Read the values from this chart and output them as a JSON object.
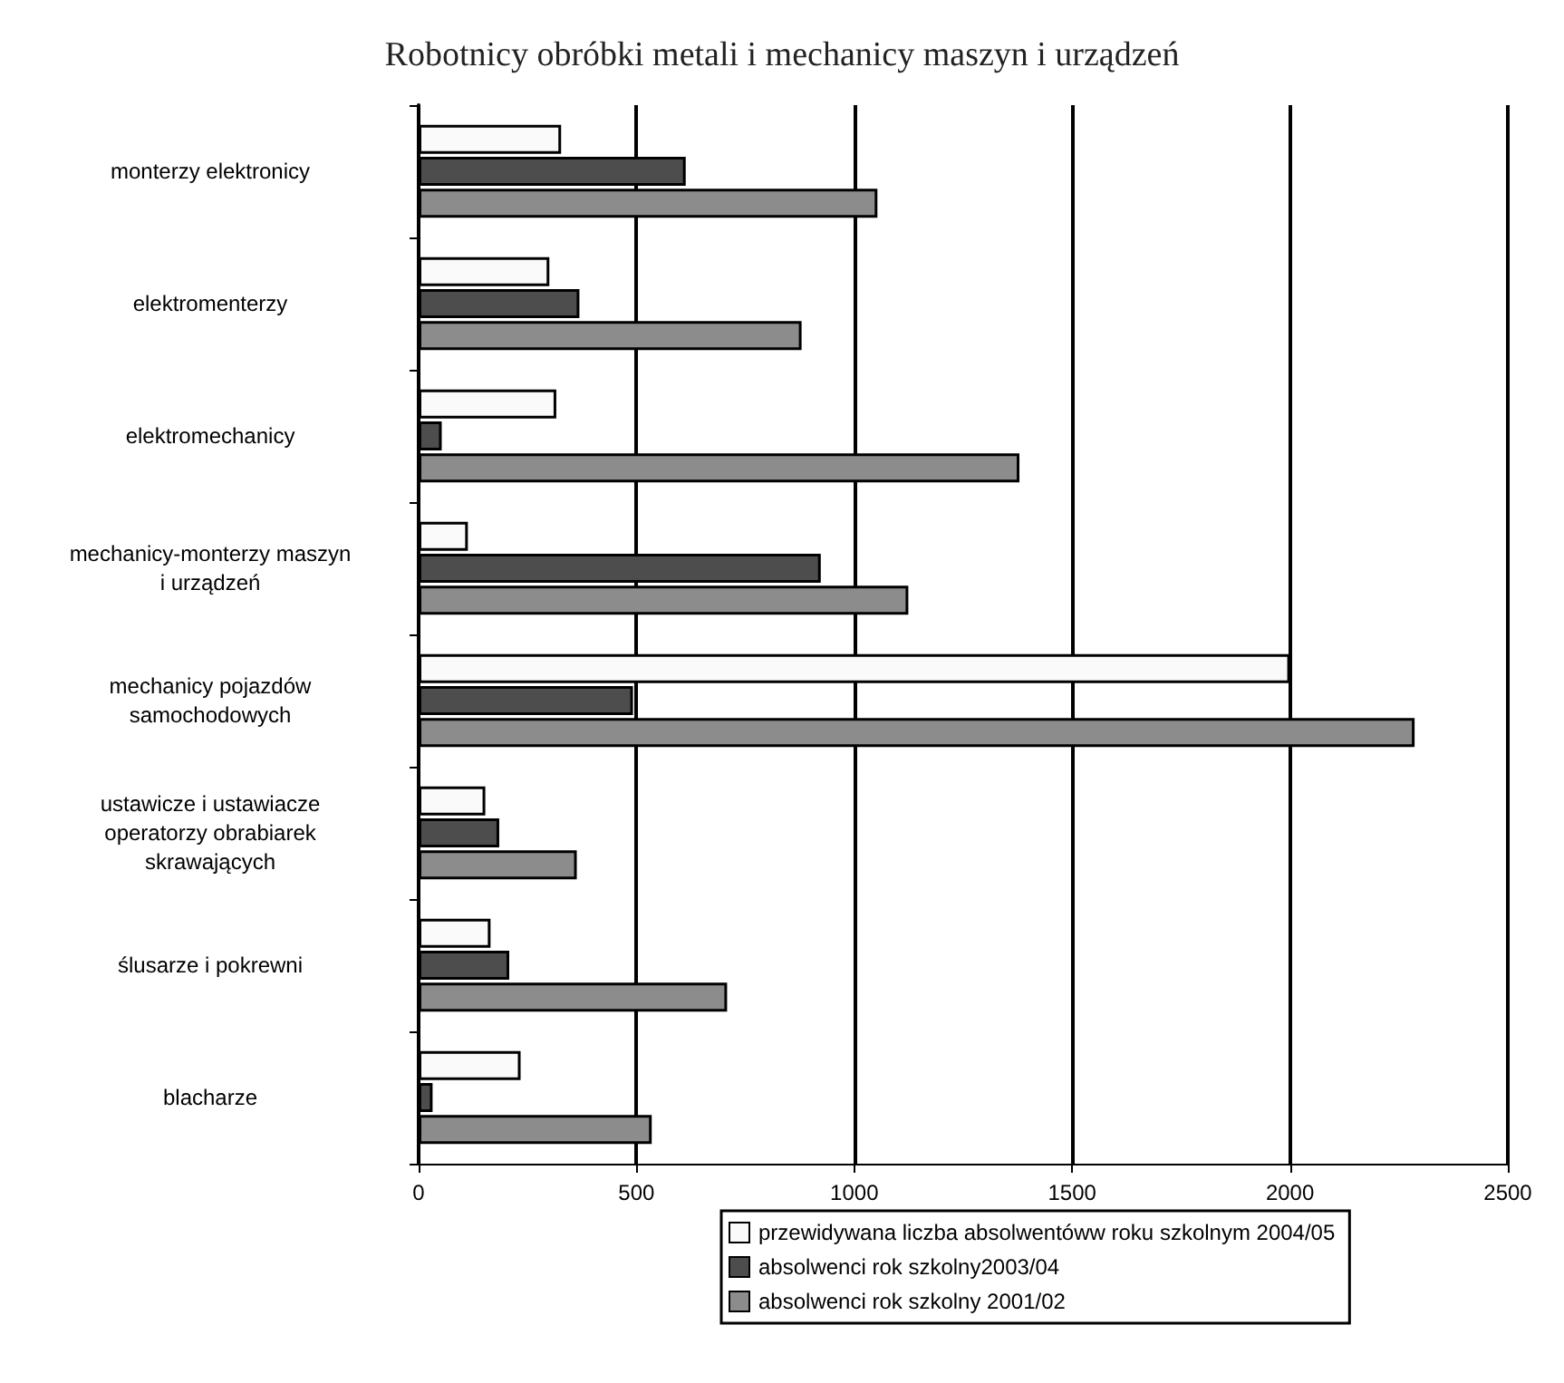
{
  "chart_data": {
    "type": "bar",
    "orientation": "horizontal",
    "title": "Robotnicy obróbki metali i mechanicy maszyn i urządzeń",
    "categories": [
      "monterzy elektronicy",
      "elektromenterzy",
      "elektromechanicy",
      "mechanicy-monterzy maszyn\ni urządzeń",
      "mechanicy pojazdów\nsamochodowych",
      "ustawicze i ustawiacze\noperatorzy obrabiarek\nskrawających",
      "ślusarze i pokrewni",
      "blacharze"
    ],
    "series": [
      {
        "name": "przewidywana liczba absolwentóww roku szkolnym 2004/05",
        "color": "#fafafa",
        "values": [
          327,
          300,
          316,
          113,
          2000,
          153,
          165,
          234
        ]
      },
      {
        "name": "absolwenci rok szkolny2003/04",
        "color": "#4d4d4d",
        "values": [
          613,
          369,
          53,
          923,
          492,
          185,
          208,
          32
        ]
      },
      {
        "name": "absolwenci rok szkolny 2001/02",
        "color": "#8c8c8c",
        "values": [
          1053,
          879,
          1379,
          1124,
          2286,
          363,
          708,
          535
        ]
      }
    ],
    "xlim": [
      0,
      2500
    ],
    "xticks": [
      0,
      500,
      1000,
      1500,
      2000,
      2500
    ],
    "grid": "x",
    "legend": "bottom"
  }
}
